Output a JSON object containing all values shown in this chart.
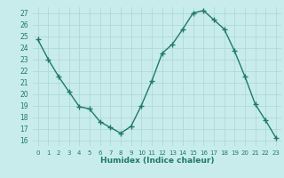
{
  "x": [
    0,
    1,
    2,
    3,
    4,
    5,
    6,
    7,
    8,
    9,
    10,
    11,
    12,
    13,
    14,
    15,
    16,
    17,
    18,
    19,
    20,
    21,
    22,
    23
  ],
  "y": [
    24.7,
    23.0,
    21.5,
    20.2,
    18.9,
    18.7,
    17.6,
    17.1,
    16.6,
    17.2,
    19.0,
    21.1,
    23.5,
    24.3,
    25.6,
    27.0,
    27.2,
    26.4,
    25.6,
    23.7,
    21.5,
    19.1,
    17.7,
    16.2
  ],
  "xlabel": "Humidex (Indice chaleur)",
  "line_color": "#1f7a64",
  "bg_color": "#c8ecec",
  "grid_color": "#b0d8d8",
  "text_color": "#1f7a64",
  "ylim": [
    15.5,
    27.5
  ],
  "xlim": [
    -0.5,
    23.5
  ],
  "yticks": [
    16,
    17,
    18,
    19,
    20,
    21,
    22,
    23,
    24,
    25,
    26,
    27
  ],
  "xticks": [
    0,
    1,
    2,
    3,
    4,
    5,
    6,
    7,
    8,
    9,
    10,
    11,
    12,
    13,
    14,
    15,
    16,
    17,
    18,
    19,
    20,
    21,
    22,
    23
  ]
}
